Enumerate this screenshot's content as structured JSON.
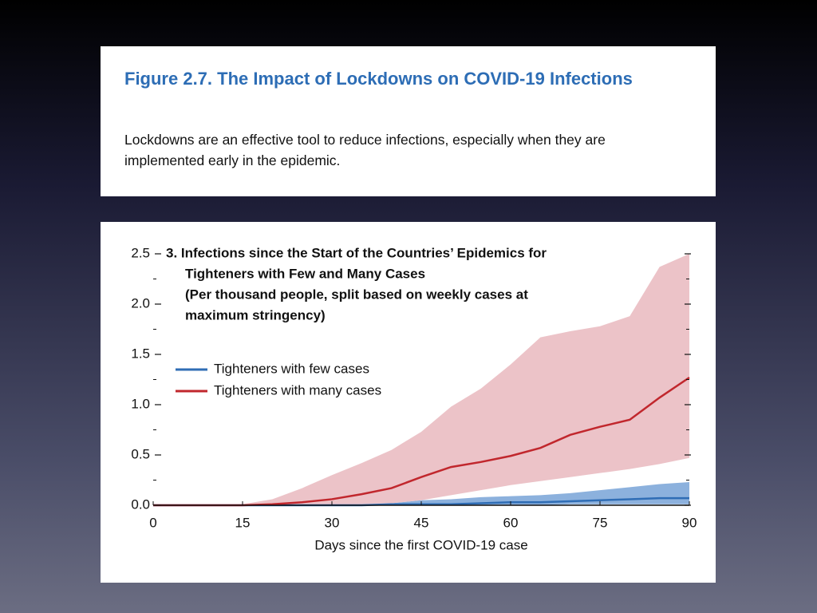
{
  "figure": {
    "title": "Figure 2.7.  The Impact of Lockdowns on COVID-19 Infections",
    "description": "Lockdowns are an effective tool to reduce infections, especially when they are implemented early in the epidemic."
  },
  "chart_data": {
    "type": "line",
    "title": [
      "3. Infections since the Start of the Countries’ Epidemics for",
      "Tighteners with Few and Many Cases"
    ],
    "subtitle": [
      "(Per thousand people, split based on weekly cases at",
      "maximum stringency)"
    ],
    "x_label": "Days since the first COVID-19 case",
    "x": [
      0,
      5,
      10,
      15,
      20,
      25,
      30,
      35,
      40,
      45,
      50,
      55,
      60,
      65,
      70,
      75,
      80,
      85,
      90
    ],
    "xlim": [
      0,
      90
    ],
    "xticks": [
      0,
      15,
      30,
      45,
      60,
      75,
      90
    ],
    "ylim": [
      0,
      2.5
    ],
    "yticks": [
      {
        "value": 0,
        "label": "0.0"
      },
      0.5,
      {
        "value": 1,
        "label": "1.0"
      },
      1.5,
      {
        "value": 2,
        "label": "2.0"
      },
      2.5
    ],
    "yminorticks": [
      0.25,
      0.75,
      1.25,
      1.75,
      2.25
    ],
    "legend": "upper left",
    "series": [
      {
        "name": "Tighteners with few cases",
        "color": "#2f6db5",
        "band_color": "#8cb1dd",
        "values": [
          0,
          0,
          0,
          0,
          0,
          0,
          0,
          0,
          0.01,
          0.01,
          0.01,
          0.02,
          0.03,
          0.03,
          0.04,
          0.05,
          0.06,
          0.07,
          0.07
        ],
        "upper": [
          0,
          0,
          0,
          0,
          0,
          0.01,
          0.01,
          0.01,
          0.02,
          0.05,
          0.06,
          0.08,
          0.09,
          0.1,
          0.12,
          0.15,
          0.18,
          0.21,
          0.23
        ],
        "lower": [
          0,
          0,
          0,
          0,
          0,
          0,
          0,
          0,
          0,
          0,
          0,
          0,
          0,
          0,
          0.01,
          0.01,
          0.01,
          0.01,
          0.01
        ]
      },
      {
        "name": "Tighteners with many cases",
        "color": "#c1272d",
        "band_color": "#ecc3c8",
        "values": [
          0,
          0,
          0,
          0,
          0.01,
          0.03,
          0.06,
          0.11,
          0.17,
          0.28,
          0.38,
          0.43,
          0.49,
          0.57,
          0.7,
          0.78,
          0.85,
          1.07,
          1.27
        ],
        "upper": [
          0,
          0,
          0,
          0.01,
          0.06,
          0.17,
          0.3,
          0.42,
          0.55,
          0.73,
          0.98,
          1.16,
          1.4,
          1.67,
          1.73,
          1.78,
          1.88,
          2.37,
          2.5
        ],
        "lower": [
          0,
          0,
          0,
          0,
          0,
          0,
          0,
          0.01,
          0.02,
          0.05,
          0.1,
          0.15,
          0.2,
          0.24,
          0.28,
          0.32,
          0.36,
          0.41,
          0.47
        ]
      }
    ]
  }
}
